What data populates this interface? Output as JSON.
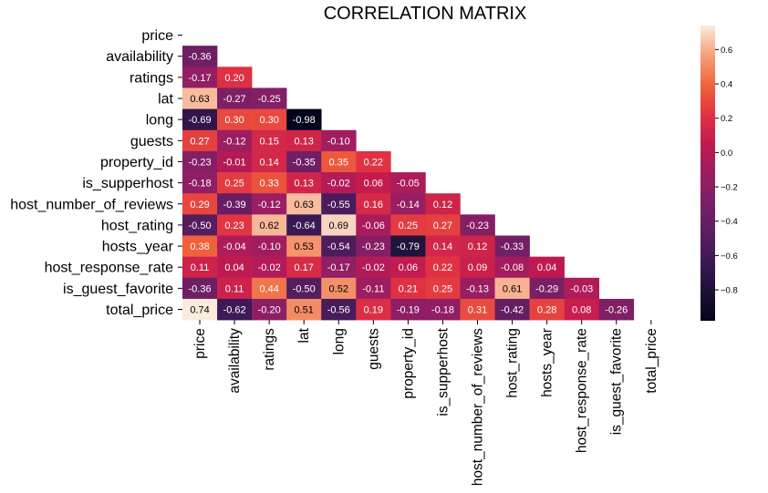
{
  "chart_data": {
    "type": "heatmap",
    "title": "CORRELATION MATRIX",
    "xlabel": "",
    "ylabel": "",
    "mask": "upper-triangle-including-diagonal",
    "labels": [
      "price",
      "availability",
      "ratings",
      "lat",
      "long",
      "guests",
      "property_id",
      "is_supperhost",
      "host_number_of_reviews",
      "host_rating",
      "hosts_year",
      "host_response_rate",
      "is_guest_favorite",
      "total_price"
    ],
    "matrix": [
      [],
      [
        -0.36
      ],
      [
        -0.17,
        0.2
      ],
      [
        0.63,
        -0.27,
        -0.25
      ],
      [
        -0.69,
        0.3,
        0.3,
        -0.98
      ],
      [
        0.27,
        -0.12,
        0.15,
        0.13,
        -0.1
      ],
      [
        -0.23,
        -0.01,
        0.14,
        -0.35,
        0.35,
        0.22
      ],
      [
        -0.18,
        0.25,
        0.33,
        0.13,
        -0.02,
        0.06,
        -0.05
      ],
      [
        0.29,
        -0.39,
        -0.12,
        0.63,
        -0.55,
        0.16,
        -0.14,
        0.12
      ],
      [
        -0.5,
        0.23,
        0.62,
        -0.64,
        0.69,
        -0.06,
        0.25,
        0.27,
        -0.23
      ],
      [
        0.38,
        -0.04,
        -0.1,
        0.53,
        -0.54,
        -0.23,
        -0.79,
        0.14,
        0.12,
        -0.33
      ],
      [
        0.11,
        0.04,
        -0.02,
        0.17,
        -0.17,
        -0.02,
        0.06,
        0.22,
        0.09,
        -0.08,
        0.04
      ],
      [
        -0.36,
        0.11,
        0.44,
        -0.5,
        0.52,
        -0.11,
        0.21,
        0.25,
        -0.13,
        0.61,
        -0.29,
        -0.03
      ],
      [
        0.74,
        -0.62,
        -0.2,
        0.51,
        -0.56,
        0.19,
        -0.19,
        -0.18,
        0.31,
        -0.42,
        0.28,
        0.08,
        -0.26
      ]
    ],
    "colorbar": {
      "colormap": "rocket",
      "vmin": -0.98,
      "vmax": 0.74,
      "ticks": [
        0.6,
        0.4,
        0.2,
        0.0,
        -0.2,
        -0.4,
        -0.6,
        -0.8
      ],
      "tick_labels": [
        "0.6",
        "0.4",
        "0.2",
        "0.0",
        "−0.2",
        "−0.4",
        "−0.6",
        "−0.8"
      ]
    },
    "value_format": "2 decimals",
    "colors": {
      "background": "#ffffff",
      "light_text": "#ffffff",
      "dark_text": "#000000"
    }
  }
}
